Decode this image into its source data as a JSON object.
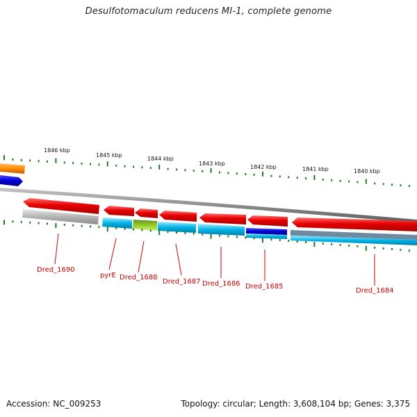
{
  "title": "Desulfotomaculum reducens MI-1, complete genome",
  "footer": {
    "accession": "Accession: NC_009253",
    "topology": "Topology: circular; Length: 3,608,104 bp; Genes: 3,375"
  },
  "ruler_labels": [
    "1846 kbp",
    "1845 kbp",
    "1844 kbp",
    "1843 kbp",
    "1842 kbp",
    "1841 kbp",
    "1840 kbp"
  ],
  "gene_labels": [
    "Dred_1690",
    "pyrE",
    "Dred_1688",
    "Dred_1687",
    "Dred_1686",
    "Dred_1685",
    "Dred_1684"
  ],
  "colors": {
    "gene_red": "#e60000",
    "backbone_grey": "#8c8c8c",
    "cog_cyan": "#00b4e6",
    "cog_grey": "#b4b4b4",
    "cog_green": "#8cc81e",
    "cog_blue": "#0000d2",
    "cog_orange": "#ff8c00",
    "tick_green": "#1e7a1e",
    "label_red": "#cc0000"
  }
}
